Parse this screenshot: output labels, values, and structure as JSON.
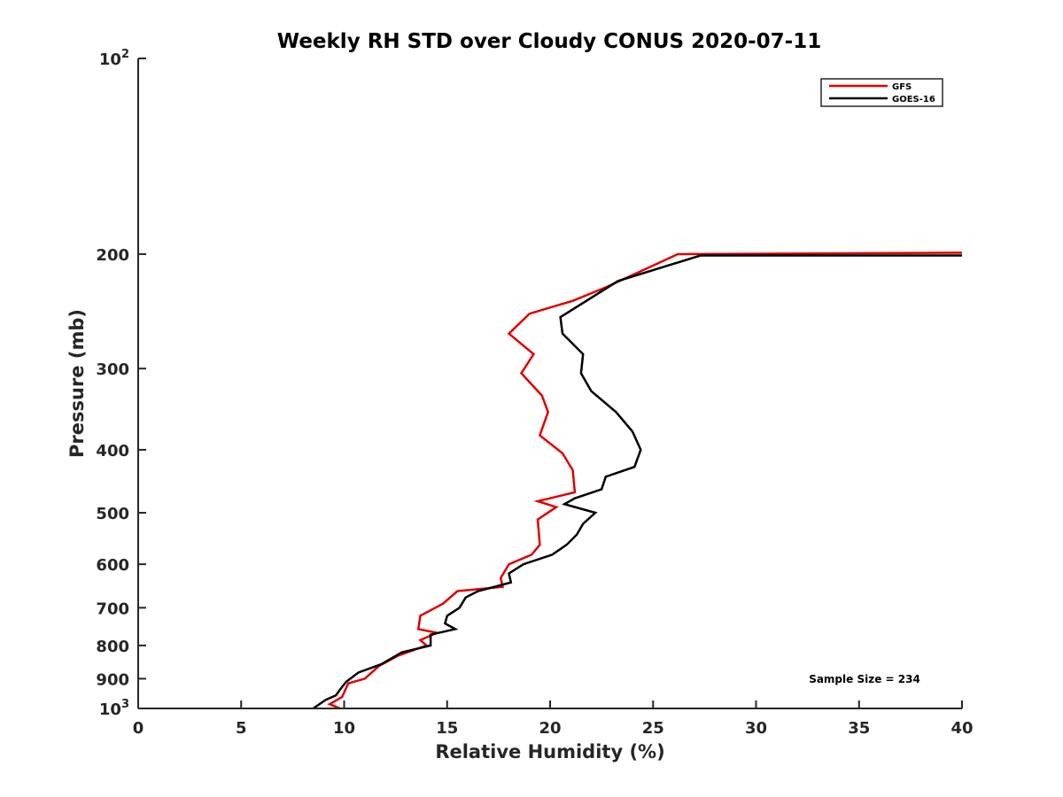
{
  "chart_data": {
    "type": "line",
    "title": "Weekly RH STD over Cloudy CONUS 2020-07-11",
    "xlabel": "Relative Humidity (%)",
    "ylabel": "Pressure (mb)",
    "xlim": [
      0,
      40
    ],
    "ylim": [
      100,
      1000
    ],
    "y_scale": "log",
    "y_reversed": true,
    "grid": false,
    "legend_position": "top-right",
    "x_ticks": [
      "0",
      "5",
      "10",
      "15",
      "20",
      "25",
      "30",
      "35",
      "40"
    ],
    "y_ticks": [
      {
        "value": 100,
        "base": "10",
        "exp": "2"
      },
      {
        "value": 200,
        "label": "200"
      },
      {
        "value": 300,
        "label": "300"
      },
      {
        "value": 400,
        "label": "400"
      },
      {
        "value": 500,
        "label": "500"
      },
      {
        "value": 600,
        "label": "600"
      },
      {
        "value": 700,
        "label": "700"
      },
      {
        "value": 800,
        "label": "800"
      },
      {
        "value": 900,
        "label": "900"
      },
      {
        "value": 1000,
        "base": "10",
        "exp": "3"
      }
    ],
    "annotation": "Sample Size = 234",
    "series": [
      {
        "name": "GFS",
        "color": "#e00000",
        "points": [
          [
            40,
            199
          ],
          [
            26.2,
            200
          ],
          [
            22.7,
            225
          ],
          [
            21.1,
            236
          ],
          [
            19.0,
            247
          ],
          [
            18.0,
            265
          ],
          [
            19.2,
            285
          ],
          [
            18.6,
            305
          ],
          [
            19.6,
            330
          ],
          [
            19.9,
            350
          ],
          [
            19.5,
            380
          ],
          [
            20.6,
            405
          ],
          [
            21.1,
            430
          ],
          [
            21.2,
            465
          ],
          [
            19.4,
            480
          ],
          [
            20.3,
            490
          ],
          [
            19.4,
            512
          ],
          [
            19.5,
            560
          ],
          [
            19.1,
            580
          ],
          [
            18.0,
            600
          ],
          [
            17.6,
            630
          ],
          [
            17.7,
            650
          ],
          [
            15.5,
            660
          ],
          [
            14.8,
            690
          ],
          [
            13.7,
            720
          ],
          [
            13.6,
            755
          ],
          [
            14.5,
            765
          ],
          [
            13.7,
            785
          ],
          [
            14.0,
            800
          ],
          [
            12.6,
            830
          ],
          [
            11.7,
            860
          ],
          [
            11.0,
            900
          ],
          [
            10.2,
            915
          ],
          [
            9.9,
            960
          ],
          [
            9.3,
            985
          ],
          [
            9.8,
            1000
          ]
        ]
      },
      {
        "name": "GOES-16",
        "color": "#000000",
        "points": [
          [
            40,
            201
          ],
          [
            27.3,
            201
          ],
          [
            23.3,
            220
          ],
          [
            20.5,
            250
          ],
          [
            20.6,
            265
          ],
          [
            21.6,
            285
          ],
          [
            21.5,
            305
          ],
          [
            22.0,
            325
          ],
          [
            23.2,
            350
          ],
          [
            24.0,
            375
          ],
          [
            24.4,
            400
          ],
          [
            24.1,
            425
          ],
          [
            22.7,
            440
          ],
          [
            22.5,
            460
          ],
          [
            21.2,
            475
          ],
          [
            20.7,
            485
          ],
          [
            22.2,
            500
          ],
          [
            21.6,
            520
          ],
          [
            21.3,
            540
          ],
          [
            20.8,
            560
          ],
          [
            20.1,
            580
          ],
          [
            18.7,
            600
          ],
          [
            18.0,
            620
          ],
          [
            18.1,
            640
          ],
          [
            16.5,
            660
          ],
          [
            15.9,
            675
          ],
          [
            15.6,
            700
          ],
          [
            15.0,
            720
          ],
          [
            14.9,
            740
          ],
          [
            15.4,
            755
          ],
          [
            14.2,
            770
          ],
          [
            14.2,
            800
          ],
          [
            12.8,
            820
          ],
          [
            11.8,
            855
          ],
          [
            10.7,
            880
          ],
          [
            10.1,
            910
          ],
          [
            9.8,
            935
          ],
          [
            9.6,
            955
          ],
          [
            9.1,
            970
          ],
          [
            8.5,
            1000
          ]
        ]
      }
    ]
  }
}
